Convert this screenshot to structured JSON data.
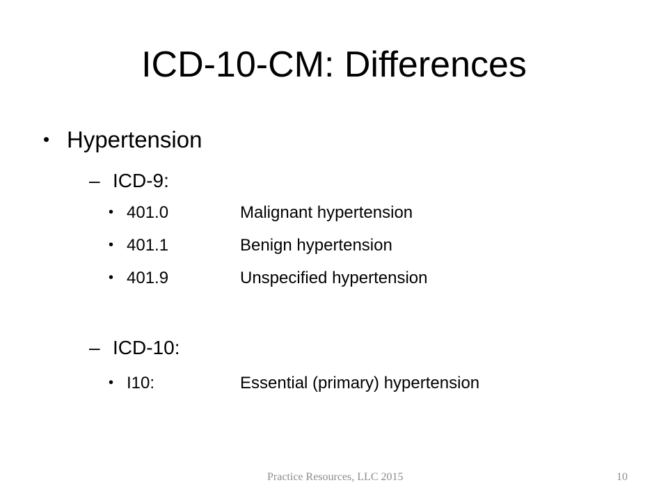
{
  "slide": {
    "title": "ICD-10-CM:  Differences",
    "topic": "Hypertension",
    "bullet_glyph": "•",
    "dash_glyph": "–",
    "icd9": {
      "heading": "ICD-9:",
      "items": [
        {
          "code": "401.0",
          "description": "Malignant hypertension"
        },
        {
          "code": "401.1",
          "description": "Benign hypertension"
        },
        {
          "code": "401.9",
          "description": "Unspecified hypertension"
        }
      ]
    },
    "icd10": {
      "heading": "ICD-10:",
      "items": [
        {
          "code": "I10:",
          "description": "Essential (primary) hypertension"
        }
      ]
    }
  },
  "footer": {
    "credit": "Practice Resources, LLC 2015",
    "page_number": "10"
  }
}
